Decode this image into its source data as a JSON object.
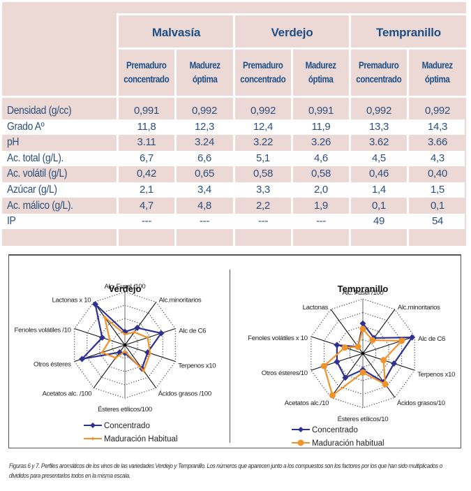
{
  "table": {
    "varieties": [
      "Malvasía",
      "Verdejo",
      "Tempranillo"
    ],
    "subheaders": [
      [
        "Premaduro",
        "concentrado"
      ],
      [
        "Madurez",
        "óptima"
      ],
      [
        "Premaduro",
        "concentrado"
      ],
      [
        "Madurez",
        "óptima"
      ],
      [
        "Premaduro",
        "concentrado"
      ],
      [
        "Madurez",
        "óptima"
      ]
    ],
    "rows": [
      {
        "label": "Densidad (g/cc)",
        "values": [
          "0,991",
          "0,992",
          "0,992",
          "0,991",
          "0,992",
          "0,992"
        ]
      },
      {
        "label": "Grado Aº",
        "values": [
          "11,8",
          "12,3",
          "12,4",
          "11,9",
          "13,3",
          "14,3"
        ]
      },
      {
        "label": "pH",
        "values": [
          "3.11",
          "3.24",
          "3.22",
          "3.26",
          "3.62",
          "3.66"
        ]
      },
      {
        "label": "Ac. total (g/L).",
        "values": [
          "6,7",
          "6,6",
          "5,1",
          "4,6",
          "4,5",
          "4,3"
        ]
      },
      {
        "label": "Ac. volátil (g/L)",
        "values": [
          "0,42",
          "0,65",
          "0,58",
          "0,58",
          "0,46",
          "0,40"
        ]
      },
      {
        "label": "Azúcar (g/L)",
        "values": [
          "2,1",
          "3,4",
          "3,3",
          "2,0",
          "1,4",
          "1,5"
        ]
      },
      {
        "label": "Ac. málico (g/L).",
        "values": [
          "4,7",
          "4,8",
          "2,2",
          "1,9",
          "0,1",
          "0,1"
        ]
      },
      {
        "label": "IP",
        "values": [
          "---",
          "---",
          "---",
          "---",
          "49",
          "54"
        ]
      }
    ]
  },
  "chart_data": [
    {
      "type": "radar",
      "title": "Verdejo",
      "axes": [
        "Alc. Fusel /100",
        "Alc.minoritarios",
        "Alc de C6",
        "Terpenos x10",
        "Ácidos grasos /100",
        "Ésteres etílicos/100",
        "Acetatos alc. /100",
        "Otros ésteres",
        "Fenoles volátiles /10",
        "Lactonas x 10"
      ],
      "scale": {
        "min": 0,
        "max": 1,
        "rings": 4
      },
      "grid": true,
      "legend_position": "bottom-left",
      "series": [
        {
          "name": "Concentrado",
          "color": "#2e3192",
          "marker": "diamond",
          "values": [
            0.25,
            0.4,
            0.72,
            0.45,
            0.55,
            0.15,
            0.17,
            0.85,
            0.45,
            0.95
          ]
        },
        {
          "name": "Maduración Habitual",
          "color": "#f0932b",
          "marker": "small-diamond",
          "values": [
            0.2,
            0.3,
            0.45,
            0.5,
            0.6,
            0.12,
            0.3,
            0.45,
            0.3,
            0.65
          ]
        }
      ]
    },
    {
      "type": "radar",
      "title": "Tempranillo",
      "axes": [
        "Alc. Fusel /100",
        "Alc.minoritarios",
        "Alc de C6",
        "Terpenos x10",
        "Ácidos grasos/10",
        "Ésteres etílicos/10",
        "Acetatos alc./10",
        "Otros ésteres/10",
        "Fenoles volátiles x 10",
        "Lactonas"
      ],
      "scale": {
        "min": 0,
        "max": 1,
        "rings": 4
      },
      "grid": true,
      "legend_position": "bottom-left",
      "series": [
        {
          "name": "Concentrado",
          "color": "#2e3192",
          "marker": "diamond",
          "values": [
            0.55,
            0.35,
            0.95,
            0.6,
            0.65,
            0.3,
            0.55,
            0.5,
            0.5,
            0.15
          ]
        },
        {
          "name": "Maduración habitual",
          "color": "#f0932b",
          "marker": "circle",
          "values": [
            0.45,
            0.3,
            0.75,
            0.4,
            0.7,
            0.35,
            0.95,
            0.75,
            0.35,
            0.15
          ]
        }
      ]
    }
  ],
  "caption": "Figuras 6 y 7. Perfiles aromáticos de los vinos de las variedades Verdejo y Tempranillo. Los números que aparecen junto a los compuestos son los factores por los que han sido multiplicados o divididos para presentarlos todos en la misma escala."
}
